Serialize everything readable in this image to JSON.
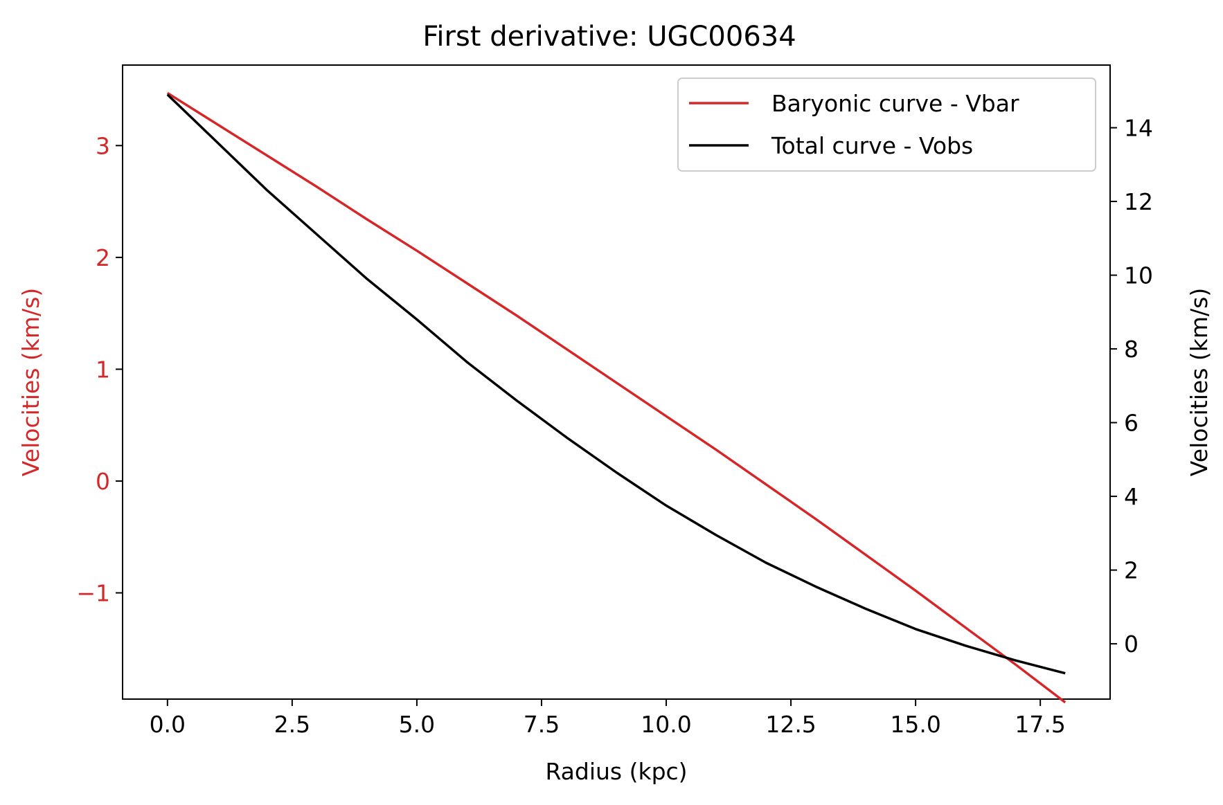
{
  "chart_data": {
    "type": "line",
    "title": "First derivative: UGC00634",
    "xlabel": "Radius (kpc)",
    "ylabel_left": "Velocities (km/s)",
    "ylabel_right": "Velocities (km/s)",
    "xlim": [
      -0.9,
      18.9
    ],
    "ylim_left": [
      -1.95,
      3.72
    ],
    "ylim_right": [
      -1.5,
      15.7
    ],
    "x_ticks": [
      "0.0",
      "2.5",
      "5.0",
      "7.5",
      "10.0",
      "12.5",
      "15.0",
      "17.5"
    ],
    "x_tick_values": [
      0,
      2.5,
      5,
      7.5,
      10,
      12.5,
      15,
      17.5
    ],
    "y_left_ticks": [
      "−1",
      "0",
      "1",
      "2",
      "3"
    ],
    "y_left_tick_values": [
      -1,
      0,
      1,
      2,
      3
    ],
    "y_right_ticks": [
      "0",
      "2",
      "4",
      "6",
      "8",
      "10",
      "12",
      "14"
    ],
    "y_right_tick_values": [
      0,
      2,
      4,
      6,
      8,
      10,
      12,
      14
    ],
    "legend_position": "top-right",
    "grid": false,
    "colors": {
      "left_axis": "#d62728",
      "right_axis": "#000000"
    },
    "series": [
      {
        "name": "Baryonic curve - Vbar",
        "axis": "left",
        "color": "#d62728",
        "x": [
          0,
          1,
          2,
          3,
          4,
          5,
          6,
          7,
          8,
          9,
          10,
          11,
          12,
          13,
          14,
          15,
          16,
          17,
          18
        ],
        "y": [
          3.47,
          3.19,
          2.91,
          2.63,
          2.34,
          2.06,
          1.77,
          1.48,
          1.18,
          0.88,
          0.58,
          0.28,
          -0.03,
          -0.34,
          -0.66,
          -0.98,
          -1.31,
          -1.64,
          -1.98
        ]
      },
      {
        "name": "Total curve - Vobs",
        "axis": "right",
        "color": "#000000",
        "x": [
          0,
          1,
          2,
          3,
          4,
          5,
          6,
          7,
          8,
          9,
          10,
          11,
          12,
          13,
          14,
          15,
          16,
          17,
          18
        ],
        "y": [
          14.9,
          13.6,
          12.3,
          11.1,
          9.9,
          8.8,
          7.65,
          6.6,
          5.6,
          4.65,
          3.75,
          2.95,
          2.2,
          1.55,
          0.95,
          0.4,
          -0.05,
          -0.45,
          -0.8
        ]
      }
    ]
  }
}
